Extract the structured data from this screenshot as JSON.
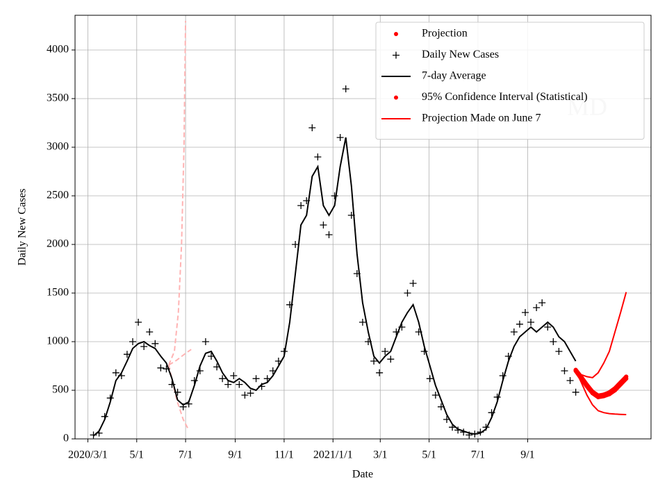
{
  "chart_data": {
    "type": "line",
    "xlabel": "Date",
    "ylabel": "Daily New Cases",
    "watermark": "MD",
    "xlim": [
      "2020-02-14",
      "2022-02-02"
    ],
    "ylim": [
      0,
      4357
    ],
    "xticks": [
      {
        "value": "2020-03-01",
        "label": "2020/3/1"
      },
      {
        "value": "2020-05-01",
        "label": "5/1"
      },
      {
        "value": "2020-07-01",
        "label": "7/1"
      },
      {
        "value": "2020-09-01",
        "label": "9/1"
      },
      {
        "value": "2020-11-01",
        "label": "11/1"
      },
      {
        "value": "2021-01-01",
        "label": "2021/1/1"
      },
      {
        "value": "2021-03-01",
        "label": "3/1"
      },
      {
        "value": "2021-05-01",
        "label": "5/1"
      },
      {
        "value": "2021-07-01",
        "label": "7/1"
      },
      {
        "value": "2021-09-01",
        "label": "9/1"
      }
    ],
    "yticks": [
      0,
      500,
      1000,
      1500,
      2000,
      2500,
      3000,
      3500,
      4000
    ],
    "grid": true,
    "legend": "upper right",
    "x": [
      "2020-03-08",
      "2020-03-15",
      "2020-03-22",
      "2020-03-29",
      "2020-04-05",
      "2020-04-12",
      "2020-04-19",
      "2020-04-26",
      "2020-05-03",
      "2020-05-10",
      "2020-05-17",
      "2020-05-24",
      "2020-05-31",
      "2020-06-07",
      "2020-06-14",
      "2020-06-21",
      "2020-06-28",
      "2020-07-05",
      "2020-07-12",
      "2020-07-19",
      "2020-07-26",
      "2020-08-02",
      "2020-08-09",
      "2020-08-16",
      "2020-08-23",
      "2020-08-30",
      "2020-09-06",
      "2020-09-13",
      "2020-09-20",
      "2020-09-27",
      "2020-10-04",
      "2020-10-11",
      "2020-10-18",
      "2020-10-25",
      "2020-11-01",
      "2020-11-08",
      "2020-11-15",
      "2020-11-22",
      "2020-11-29",
      "2020-12-06",
      "2020-12-13",
      "2020-12-20",
      "2020-12-27",
      "2021-01-03",
      "2021-01-10",
      "2021-01-17",
      "2021-01-24",
      "2021-01-31",
      "2021-02-07",
      "2021-02-14",
      "2021-02-21",
      "2021-02-28",
      "2021-03-07",
      "2021-03-14",
      "2021-03-21",
      "2021-03-28",
      "2021-04-04",
      "2021-04-11",
      "2021-04-18",
      "2021-04-25",
      "2021-05-02",
      "2021-05-09",
      "2021-05-16",
      "2021-05-23",
      "2021-05-30",
      "2021-06-06",
      "2021-06-13",
      "2021-06-20",
      "2021-06-27",
      "2021-07-04",
      "2021-07-11",
      "2021-07-18",
      "2021-07-25",
      "2021-08-01",
      "2021-08-08",
      "2021-08-15",
      "2021-08-22",
      "2021-08-29",
      "2021-09-05",
      "2021-09-12",
      "2021-09-19",
      "2021-09-26",
      "2021-10-03",
      "2021-10-10",
      "2021-10-17",
      "2021-10-24",
      "2021-10-31"
    ],
    "series": [
      {
        "name": "Projection",
        "color": "#ff0000",
        "marker": "dot",
        "x": [
          "2021-10-31",
          "2021-11-07",
          "2021-11-14",
          "2021-11-21",
          "2021-11-28",
          "2021-12-05",
          "2021-12-12",
          "2021-12-19",
          "2021-12-26",
          "2022-01-02"
        ],
        "values": [
          700,
          620,
          540,
          470,
          430,
          440,
          460,
          500,
          560,
          620
        ]
      },
      {
        "name": "Daily New Cases",
        "color": "#000000",
        "marker": "plus",
        "values": [
          40,
          60,
          230,
          420,
          680,
          650,
          870,
          1000,
          1200,
          950,
          1100,
          980,
          730,
          720,
          560,
          480,
          330,
          360,
          600,
          700,
          1000,
          850,
          740,
          620,
          560,
          650,
          560,
          450,
          470,
          620,
          540,
          620,
          700,
          800,
          900,
          1380,
          2000,
          2400,
          2450,
          3200,
          2900,
          2200,
          2100,
          2500,
          3100,
          3600,
          2300,
          1700,
          1200,
          1000,
          800,
          680,
          900,
          820,
          1100,
          1150,
          1500,
          1600,
          1100,
          900,
          620,
          450,
          330,
          200,
          120,
          90,
          70,
          40,
          50,
          70,
          120,
          270,
          430,
          650,
          850,
          1100,
          1180,
          1300,
          1200,
          1350,
          1400,
          1150,
          1000,
          900,
          700,
          600,
          480
        ]
      },
      {
        "name": "7-day Average",
        "color": "#000000",
        "marker": "line",
        "values": [
          30,
          80,
          200,
          380,
          600,
          680,
          800,
          930,
          980,
          1000,
          960,
          930,
          850,
          780,
          620,
          400,
          350,
          380,
          550,
          750,
          880,
          900,
          800,
          680,
          600,
          580,
          620,
          580,
          520,
          500,
          560,
          580,
          650,
          750,
          850,
          1200,
          1700,
          2200,
          2300,
          2700,
          2800,
          2400,
          2300,
          2400,
          2800,
          3100,
          2600,
          1900,
          1400,
          1100,
          850,
          780,
          850,
          900,
          1050,
          1200,
          1300,
          1380,
          1200,
          950,
          750,
          550,
          400,
          250,
          150,
          100,
          80,
          60,
          50,
          60,
          100,
          220,
          380,
          600,
          800,
          950,
          1050,
          1100,
          1150,
          1100,
          1150,
          1200,
          1150,
          1050,
          1000,
          900,
          800
        ]
      },
      {
        "name": "95% Confidence Interval (Statistical)",
        "color": "#ff0000",
        "marker": "dot",
        "x": [
          "2021-10-31",
          "2021-11-07",
          "2021-11-14",
          "2021-11-21",
          "2021-11-28",
          "2021-12-05",
          "2021-12-12",
          "2021-12-19",
          "2021-12-26",
          "2022-01-02"
        ],
        "values": [
          710,
          635,
          555,
          485,
          445,
          455,
          478,
          520,
          580,
          640
        ]
      },
      {
        "name": "Projection Made on June 7",
        "color": "#ff0000",
        "marker": "line",
        "x": [
          "2021-10-31",
          "2021-11-07",
          "2021-11-14",
          "2021-11-21",
          "2021-11-28",
          "2021-12-05",
          "2021-12-12",
          "2021-12-19",
          "2021-12-26",
          "2022-01-02"
        ],
        "values": [
          700,
          660,
          640,
          630,
          680,
          780,
          900,
          1100,
          1300,
          1510
        ]
      },
      {
        "color": "#ff0000",
        "marker": "line",
        "x": [
          "2021-10-31",
          "2021-11-07",
          "2021-11-14",
          "2021-11-21",
          "2021-11-28",
          "2021-12-05",
          "2021-12-12",
          "2021-12-19",
          "2021-12-26",
          "2022-01-02"
        ],
        "values": [
          700,
          580,
          450,
          350,
          290,
          270,
          260,
          255,
          252,
          250
        ]
      },
      {
        "color": "#ffb3b3",
        "marker": "dash",
        "x": [
          "2020-06-10",
          "2020-06-17",
          "2020-06-22",
          "2020-06-26",
          "2020-06-29",
          "2020-07-01"
        ],
        "values": [
          760,
          900,
          1300,
          2000,
          3000,
          4300
        ]
      },
      {
        "color": "#ffb3b3",
        "marker": "dash",
        "x": [
          "2020-06-10",
          "2020-06-20",
          "2020-06-28",
          "2020-07-05"
        ],
        "values": [
          760,
          400,
          200,
          90
        ]
      },
      {
        "color": "#ffb3b3",
        "marker": "dash",
        "x": [
          "2020-06-10",
          "2020-06-20",
          "2020-07-01",
          "2020-07-08"
        ],
        "values": [
          760,
          810,
          880,
          920
        ]
      }
    ]
  }
}
